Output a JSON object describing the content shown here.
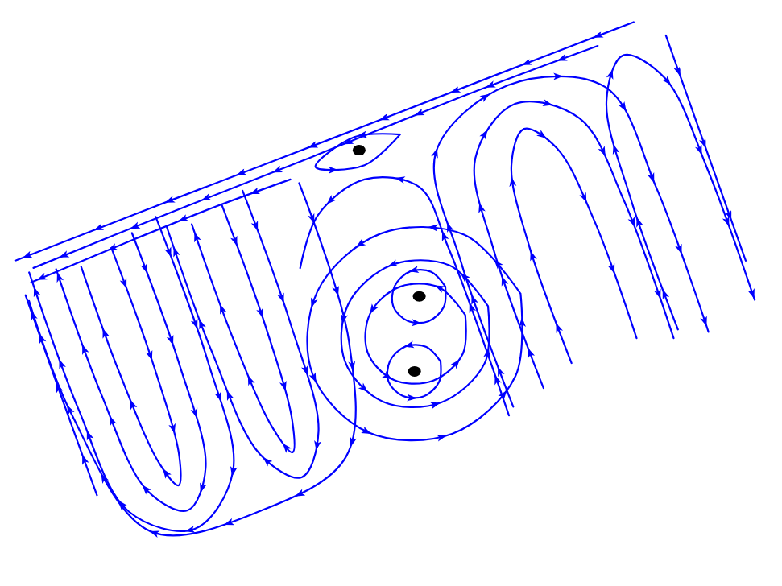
{
  "chart_data": {
    "type": "streamline",
    "tick_labels": false,
    "color": "#0000ff",
    "xlim": [
      0,
      10
    ],
    "ylim": [
      0,
      5
    ],
    "streamlines": [
      {
        "x": [
          9.6,
          7.5,
          5.0,
          2.5,
          0.1
        ],
        "y": [
          4.96,
          4.96,
          4.95,
          4.95,
          4.94
        ]
      },
      {
        "x": [
          9.0,
          7.0,
          4.6,
          2.4,
          0.3
        ],
        "y": [
          4.82,
          4.84,
          4.8,
          4.78,
          4.74
        ]
      },
      {
        "x": [
          4.2,
          3.0,
          1.8,
          0.2
        ],
        "y": [
          4.6,
          4.62,
          4.6,
          4.55
        ]
      },
      {
        "x": [
          0.05,
          0.05,
          0.06
        ],
        "y": [
          1.2,
          2.8,
          4.4
        ]
      },
      {
        "x": [
          4.3,
          4.2,
          3.6,
          2.2,
          0.6,
          0.1,
          0.08
        ],
        "y": [
          4.5,
          2.0,
          0.4,
          0.1,
          0.4,
          2.5,
          4.3
        ]
      },
      {
        "x": [
          2.2,
          2.2,
          2.0,
          1.2,
          0.4,
          0.22,
          0.22
        ],
        "y": [
          4.8,
          2.5,
          0.8,
          0.2,
          0.8,
          2.5,
          4.7
        ]
      },
      {
        "x": [
          1.8,
          1.8,
          1.65,
          1.2,
          0.75,
          0.6,
          0.6
        ],
        "y": [
          4.7,
          2.6,
          1.0,
          0.5,
          1.0,
          2.6,
          4.6
        ]
      },
      {
        "x": [
          1.45,
          1.45,
          1.35,
          1.2,
          1.05,
          0.95,
          0.95
        ],
        "y": [
          4.6,
          2.8,
          1.3,
          0.9,
          1.3,
          2.8,
          4.5
        ]
      },
      {
        "x": [
          3.5,
          3.5,
          3.35,
          2.9,
          2.45,
          2.3,
          2.3
        ],
        "y": [
          4.7,
          2.6,
          0.9,
          0.35,
          0.9,
          2.6,
          4.6
        ]
      },
      {
        "x": [
          3.15,
          3.15,
          3.05,
          2.9,
          2.75,
          2.65,
          2.65
        ],
        "y": [
          4.6,
          2.7,
          1.2,
          0.75,
          1.2,
          2.7,
          4.5
        ]
      },
      {
        "x": [
          6.1,
          6.1,
          6.3,
          7.6,
          8.9,
          9.1,
          9.1
        ],
        "y": [
          0.2,
          2.5,
          4.2,
          4.75,
          4.2,
          2.5,
          0.2
        ]
      },
      {
        "x": [
          6.6,
          6.6,
          6.8,
          7.6,
          8.4,
          8.6,
          8.6
        ],
        "y": [
          0.3,
          2.5,
          3.9,
          4.45,
          3.9,
          2.5,
          0.3
        ]
      },
      {
        "x": [
          7.1,
          7.1,
          7.25,
          7.6,
          7.95,
          8.1,
          8.1
        ],
        "y": [
          0.5,
          2.4,
          3.6,
          4.05,
          3.6,
          2.4,
          0.5
        ]
      },
      {
        "x": [
          8.7,
          8.7,
          8.85,
          9.3,
          9.75,
          9.88,
          9.88
        ],
        "y": [
          0.4,
          2.5,
          4.0,
          4.55,
          4.0,
          2.5,
          0.4
        ]
      },
      {
        "x": [
          9.97,
          9.96,
          9.95
        ],
        "y": [
          4.6,
          3.0,
          1.0
        ]
      },
      {
        "x": [
          6.0,
          6.0,
          5.9,
          5.2,
          4.4,
          3.9
        ],
        "y": [
          0.1,
          2.8,
          3.8,
          4.2,
          3.95,
          3.3
        ]
      },
      {
        "x": [
          6.75,
          6.28,
          5.15,
          4.02,
          3.55,
          4.02,
          5.15,
          6.28,
          6.75
        ],
        "y": [
          1.75,
          2.88,
          3.35,
          2.88,
          1.75,
          0.62,
          0.15,
          0.62,
          1.75
        ]
      },
      {
        "x": [
          6.25,
          5.93,
          5.15,
          4.37,
          4.05,
          4.37,
          5.15,
          5.93,
          6.25
        ],
        "y": [
          1.75,
          2.53,
          2.85,
          2.53,
          1.75,
          0.97,
          0.65,
          0.97,
          1.75
        ]
      },
      {
        "x": [
          5.9,
          5.68,
          5.15,
          4.62,
          4.4,
          4.62,
          5.15,
          5.68,
          5.9
        ],
        "y": [
          1.75,
          2.28,
          2.5,
          2.28,
          1.75,
          1.22,
          1.0,
          1.22,
          1.75
        ]
      },
      {
        "x": [
          5.77,
          5.65,
          5.37,
          5.09,
          4.97,
          5.09,
          5.37,
          5.65,
          5.77
        ],
        "y": [
          2.26,
          2.54,
          2.66,
          2.54,
          2.26,
          1.98,
          1.86,
          1.98,
          2.26
        ]
      },
      {
        "x": [
          5.34,
          5.22,
          4.94,
          4.66,
          4.54,
          4.66,
          4.94,
          5.22,
          5.34
        ],
        "y": [
          1.23,
          1.51,
          1.63,
          1.51,
          1.23,
          0.95,
          0.83,
          0.95,
          1.23
        ]
      },
      {
        "x": [
          5.9,
          5.27,
          4.6,
          5.27,
          5.9
        ],
        "y": [
          4.64,
          4.85,
          4.64,
          4.4,
          4.64
        ]
      }
    ],
    "points": {
      "x": [
        5.27,
        5.37,
        4.94
      ],
      "y": [
        4.64,
        2.26,
        1.23
      ],
      "color": "#000000"
    }
  }
}
